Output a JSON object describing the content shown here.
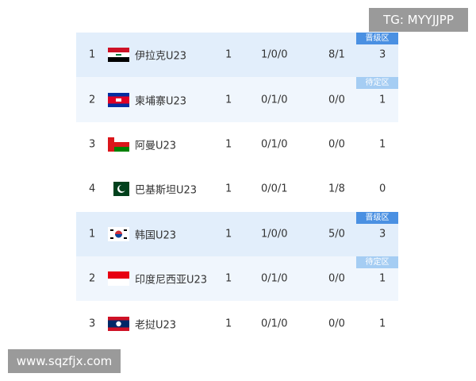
{
  "watermarks": {
    "top": "TG: MYYJJPP",
    "bottom": "www.sqzfjx.com"
  },
  "badges": {
    "advance": "晋级区",
    "pending": "待定区"
  },
  "colors": {
    "advance_badge": "#4a90e2",
    "pending_badge": "#a5cdf3",
    "advance_row": "#e2eefb",
    "pending_row": "#f0f6fd"
  },
  "rows": [
    {
      "rank": "1",
      "team": "伊拉克U23",
      "flag": "iraq-flag",
      "played": "1",
      "wdl": "1/0/0",
      "goals": "8/1",
      "points": "3",
      "zone": "advance"
    },
    {
      "rank": "2",
      "team": "柬埔寨U23",
      "flag": "cambodia-flag",
      "played": "1",
      "wdl": "0/1/0",
      "goals": "0/0",
      "points": "1",
      "zone": "pending"
    },
    {
      "rank": "3",
      "team": "阿曼U23",
      "flag": "oman-flag",
      "played": "1",
      "wdl": "0/1/0",
      "goals": "0/0",
      "points": "1",
      "zone": ""
    },
    {
      "rank": "4",
      "team": "巴基斯坦U23",
      "flag": "pakistan-flag",
      "played": "1",
      "wdl": "0/0/1",
      "goals": "1/8",
      "points": "0",
      "zone": ""
    },
    {
      "rank": "1",
      "team": "韩国U23",
      "flag": "korea-flag",
      "played": "1",
      "wdl": "1/0/0",
      "goals": "5/0",
      "points": "3",
      "zone": "advance"
    },
    {
      "rank": "2",
      "team": "印度尼西亚U23",
      "flag": "indonesia-flag",
      "played": "1",
      "wdl": "0/1/0",
      "goals": "0/0",
      "points": "1",
      "zone": "pending"
    },
    {
      "rank": "3",
      "team": "老挝U23",
      "flag": "laos-flag",
      "played": "1",
      "wdl": "0/1/0",
      "goals": "0/0",
      "points": "1",
      "zone": ""
    }
  ]
}
